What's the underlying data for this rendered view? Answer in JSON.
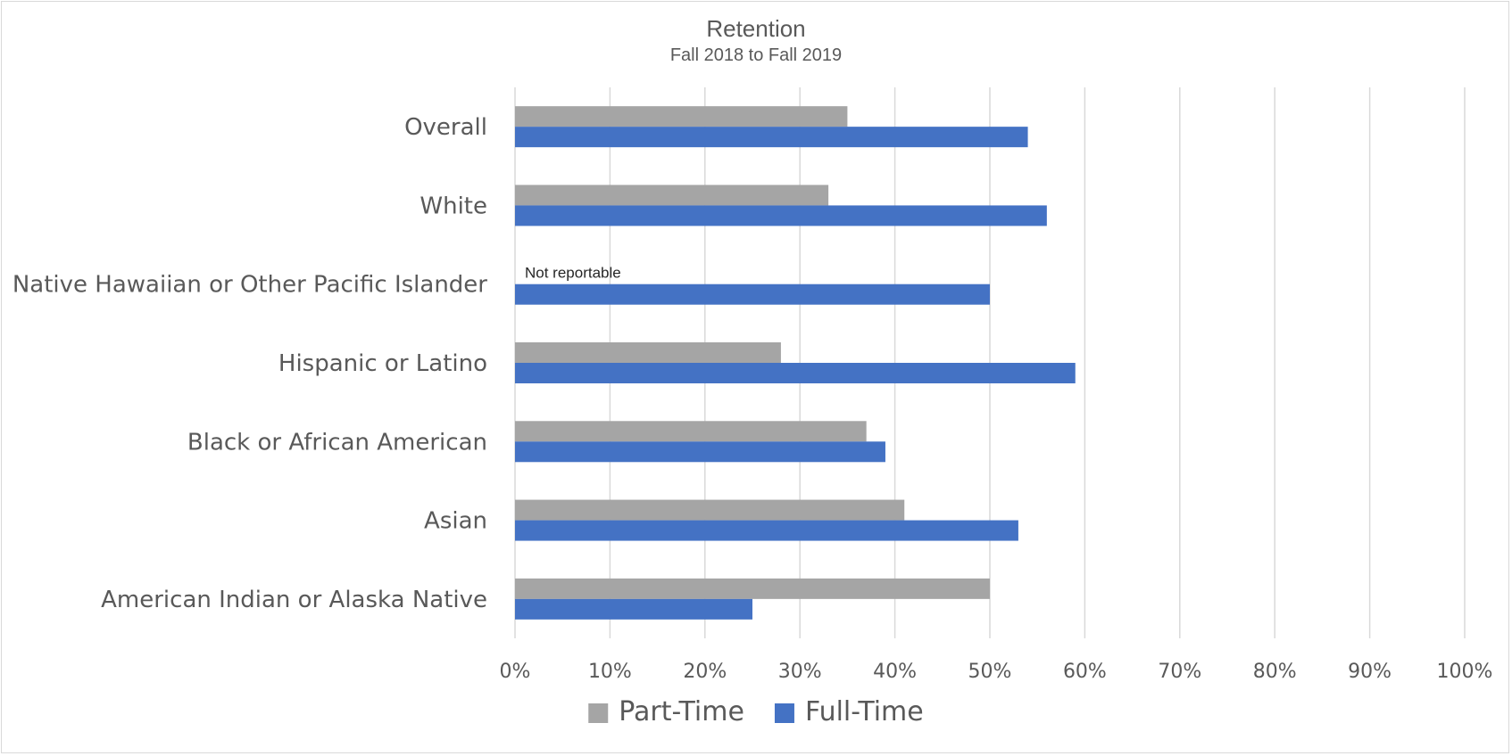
{
  "chart_data": {
    "type": "bar",
    "orientation": "horizontal",
    "title": "Retention",
    "subtitle": "Fall 2018 to Fall 2019",
    "categories": [
      "Overall",
      "White",
      "Native Hawaiian or Other Pacific Islander",
      "Hispanic or Latino",
      "Black or African American",
      "Asian",
      "American Indian or Alaska Native"
    ],
    "series": [
      {
        "name": "Part-Time",
        "color": "#a5a5a5",
        "values": [
          35,
          33,
          null,
          28,
          37,
          41,
          50
        ]
      },
      {
        "name": "Full-Time",
        "color": "#4472c4",
        "values": [
          54,
          56,
          50,
          59,
          39,
          53,
          25
        ]
      }
    ],
    "annotations": [
      {
        "category": "Native Hawaiian or Other Pacific Islander",
        "series": "Part-Time",
        "text": "Not reportable"
      }
    ],
    "xlim": [
      0,
      100
    ],
    "xticks": [
      "0%",
      "10%",
      "20%",
      "30%",
      "40%",
      "50%",
      "60%",
      "70%",
      "80%",
      "90%",
      "100%"
    ],
    "grid": "vertical",
    "legend": "bottom"
  }
}
